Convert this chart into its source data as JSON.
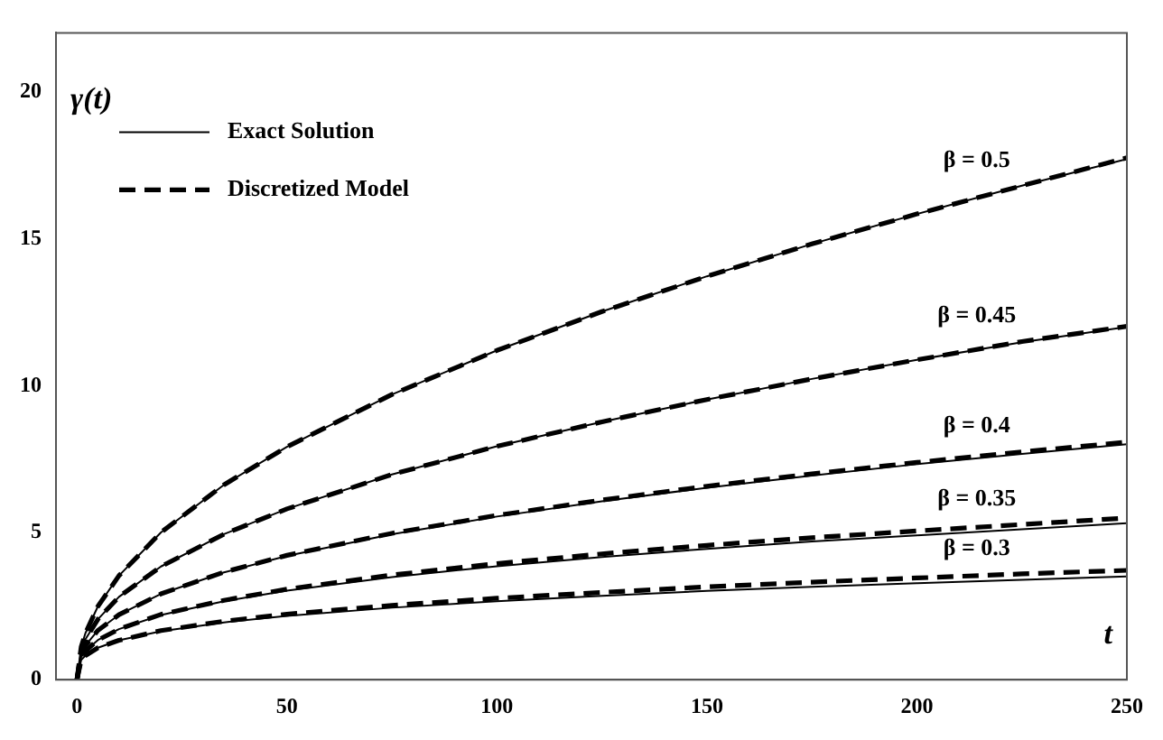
{
  "chart_data": {
    "type": "line",
    "xlabel": "t",
    "ylabel": "γ(t)",
    "x": [
      0,
      1,
      2,
      5,
      10,
      20,
      35,
      50,
      75,
      100,
      125,
      150,
      175,
      200,
      225,
      250
    ],
    "xlim": [
      -5,
      250
    ],
    "ylim": [
      0,
      22
    ],
    "xticks": [
      0,
      50,
      100,
      150,
      200,
      250
    ],
    "yticks": [
      0,
      5,
      10,
      15,
      20
    ],
    "grid": false,
    "legend": "top left",
    "marker": "none",
    "series": [
      {
        "name": "Exact Solution",
        "color": "#000000",
        "line_style": "solid",
        "values": [
          0,
          1.12,
          1.58,
          2.5,
          3.54,
          5.01,
          6.63,
          7.92,
          9.7,
          11.2,
          12.52,
          13.72,
          14.82,
          15.84,
          16.8,
          17.71
        ]
      },
      {
        "name": "Discretized Model",
        "color": "#000000",
        "line_style": "dashed",
        "values": [
          0,
          1.12,
          1.58,
          2.5,
          3.54,
          5.01,
          6.63,
          7.92,
          9.7,
          11.2,
          12.52,
          13.72,
          14.82,
          15.84,
          16.8,
          17.75
        ]
      },
      {
        "color": "#000000",
        "line_style": "solid",
        "values": [
          0,
          1,
          1.37,
          2.06,
          2.82,
          3.85,
          4.95,
          5.81,
          6.98,
          7.94,
          8.77,
          9.53,
          10.23,
          10.88,
          11.48,
          12
        ]
      },
      {
        "color": "#000000",
        "line_style": "dashed",
        "values": [
          0,
          1,
          1.37,
          2.06,
          2.82,
          3.85,
          4.95,
          5.81,
          6.98,
          7.94,
          8.77,
          9.53,
          10.23,
          10.88,
          11.5,
          12.02
        ]
      },
      {
        "color": "#000000",
        "line_style": "solid",
        "values": [
          0,
          0.88,
          1.16,
          1.68,
          2.21,
          2.92,
          3.65,
          4.21,
          4.95,
          5.55,
          6.07,
          6.53,
          6.94,
          7.33,
          7.68,
          8.01
        ]
      },
      {
        "color": "#000000",
        "line_style": "dashed",
        "values": [
          0,
          0.88,
          1.16,
          1.68,
          2.21,
          2.92,
          3.66,
          4.23,
          4.98,
          5.59,
          6.11,
          6.58,
          7,
          7.39,
          7.75,
          8.08
        ]
      },
      {
        "color": "#000000",
        "line_style": "solid",
        "values": [
          0,
          0.77,
          0.98,
          1.35,
          1.72,
          2.2,
          2.67,
          3.03,
          3.49,
          3.86,
          4.17,
          4.45,
          4.7,
          4.91,
          5.12,
          5.32
        ]
      },
      {
        "color": "#000000",
        "line_style": "dashed",
        "values": [
          0,
          0.77,
          0.98,
          1.35,
          1.72,
          2.22,
          2.7,
          3.08,
          3.56,
          3.95,
          4.28,
          4.57,
          4.83,
          5.06,
          5.28,
          5.5
        ]
      },
      {
        "color": "#000000",
        "line_style": "solid",
        "values": [
          0,
          0.67,
          0.82,
          1.09,
          1.34,
          1.65,
          1.95,
          2.17,
          2.45,
          2.67,
          2.85,
          3.02,
          3.16,
          3.28,
          3.4,
          3.51
        ]
      },
      {
        "color": "#000000",
        "line_style": "dashed",
        "values": [
          0,
          0.67,
          0.82,
          1.09,
          1.34,
          1.67,
          1.99,
          2.23,
          2.53,
          2.77,
          2.97,
          3.16,
          3.32,
          3.46,
          3.6,
          3.72
        ]
      }
    ],
    "annotations": [
      "β = 0.5",
      "β = 0.45",
      "β = 0.4",
      "β = 0.35",
      "β = 0.3"
    ]
  }
}
